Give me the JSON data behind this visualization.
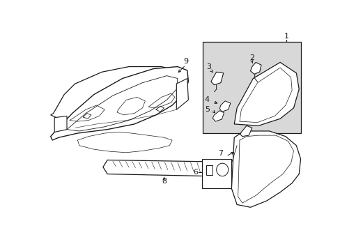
{
  "bg_color": "#ffffff",
  "line_color": "#1a1a1a",
  "box_bg": "#d8d8d8",
  "figsize": [
    4.89,
    3.6
  ],
  "dpi": 100
}
